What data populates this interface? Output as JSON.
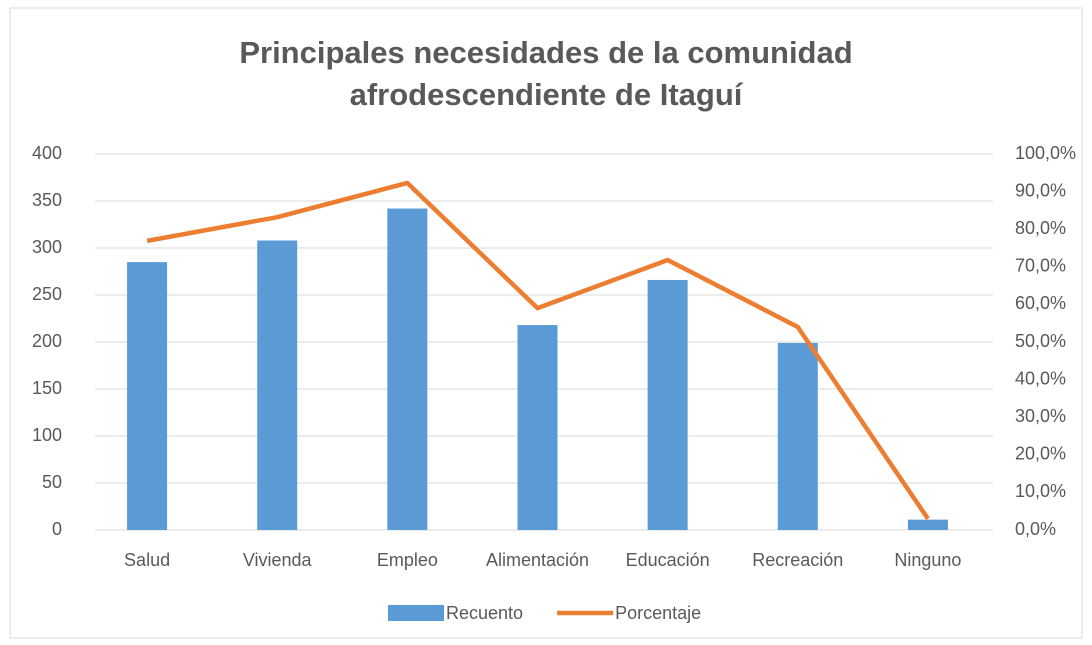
{
  "chart_data": {
    "type": "bar_line",
    "title": "Principales necesidades de la comunidad afrodescendiente de Itaguí",
    "categories": [
      "Salud",
      "Vivienda",
      "Empleo",
      "Alimentación",
      "Educación",
      "Recreación",
      "Ninguno"
    ],
    "series": [
      {
        "name": "Recuento",
        "type": "bar",
        "color": "#5b9bd5",
        "values": [
          285,
          308,
          342,
          218,
          266,
          199,
          11
        ]
      },
      {
        "name": "Porcentaje",
        "type": "line",
        "axis": "y2",
        "color": "#ed7d31",
        "values": [
          76.9,
          83.2,
          92.3,
          59.0,
          71.8,
          54.0,
          3.0
        ]
      }
    ],
    "ylim": [
      0,
      400
    ],
    "yticks": [
      0,
      50,
      100,
      150,
      200,
      250,
      300,
      350,
      400
    ],
    "y2lim": [
      0,
      100
    ],
    "y2ticks": [
      {
        "value": 0,
        "label": "0,0%"
      },
      {
        "value": 10,
        "label": "10,0%"
      },
      {
        "value": 20,
        "label": "20,0%"
      },
      {
        "value": 30,
        "label": "30,0%"
      },
      {
        "value": 40,
        "label": "40,0%"
      },
      {
        "value": 50,
        "label": "50,0%"
      },
      {
        "value": 60,
        "label": "60,0%"
      },
      {
        "value": 70,
        "label": "70,0%"
      },
      {
        "value": 80,
        "label": "80,0%"
      },
      {
        "value": 90,
        "label": "90,0%"
      },
      {
        "value": 100,
        "label": "100,0%"
      }
    ],
    "grid": true,
    "legend": "bottom"
  }
}
